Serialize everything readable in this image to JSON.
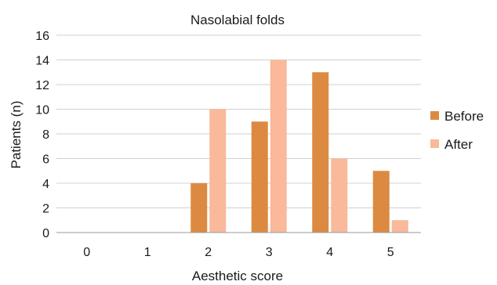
{
  "chart_data": {
    "type": "bar",
    "title": "Nasolabial folds",
    "xlabel": "Aesthetic score",
    "ylabel": "Patients (n)",
    "categories": [
      "0",
      "1",
      "2",
      "3",
      "4",
      "5"
    ],
    "series": [
      {
        "name": "Before",
        "color": "#dc8a41",
        "values": [
          0,
          0,
          4,
          9,
          13,
          5
        ]
      },
      {
        "name": "After",
        "color": "#f9b99a",
        "values": [
          0,
          0,
          10,
          14,
          6,
          1
        ]
      }
    ],
    "ylim": [
      0,
      16
    ],
    "yticks": [
      0,
      2,
      4,
      6,
      8,
      10,
      12,
      14,
      16
    ],
    "grid": true,
    "legend": "right"
  }
}
